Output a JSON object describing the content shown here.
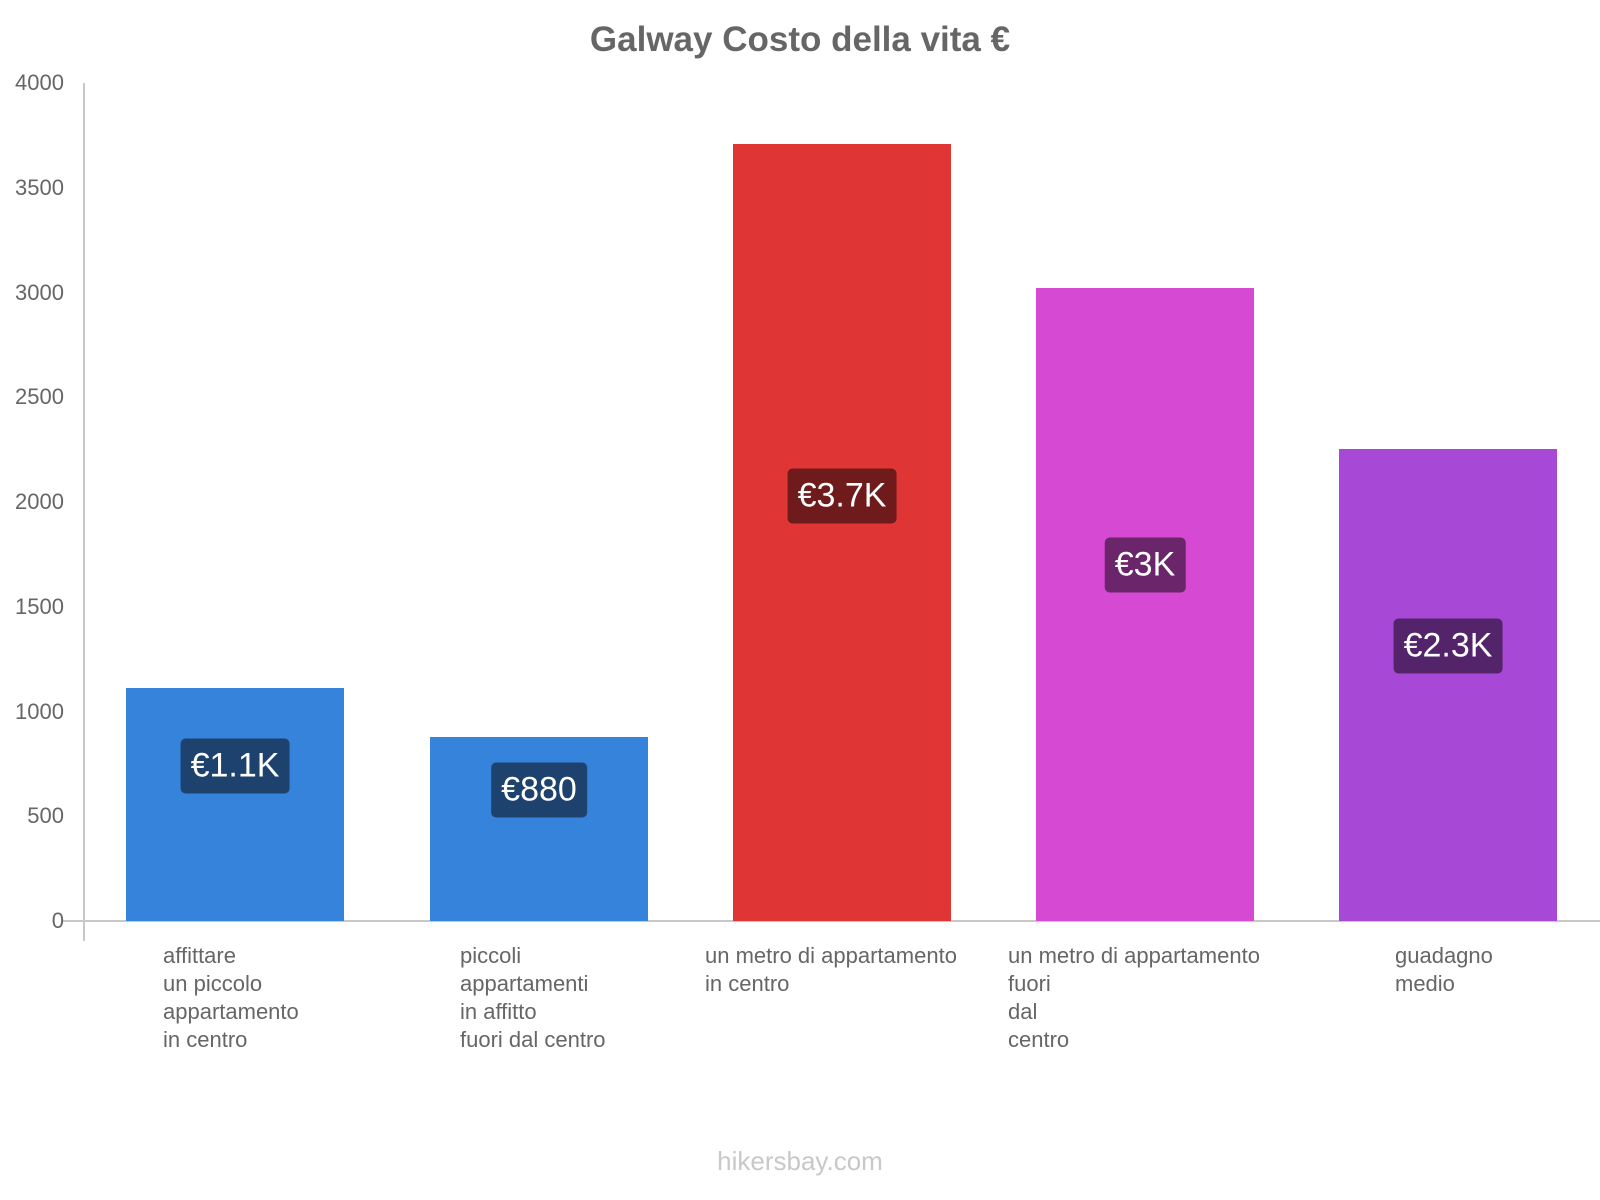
{
  "chart_data": {
    "type": "bar",
    "title": "Galway Costo della vita €",
    "xlabel": "",
    "ylabel": "",
    "ylim": [
      0,
      4000
    ],
    "yticks": [
      0,
      500,
      1000,
      1500,
      2000,
      2500,
      3000,
      3500,
      4000
    ],
    "grid": false,
    "legend": null,
    "categories": [
      "affittare un piccolo appartamento in centro",
      "piccoli appartamenti in affitto fuori dal centro",
      "un metro di appartamento in centro",
      "un metro di appartamento fuori dal centro",
      "guadagno medio"
    ],
    "category_label_lines": [
      [
        "affittare",
        "un piccolo",
        "appartamento",
        "in centro"
      ],
      [
        "piccoli",
        "appartamenti",
        "in affitto",
        "fuori dal centro"
      ],
      [
        "un metro di appartamento",
        "in centro"
      ],
      [
        "un metro di appartamento",
        "fuori",
        "dal",
        "centro"
      ],
      [
        "guadagno",
        "medio"
      ]
    ],
    "values": [
      1110,
      880,
      3707,
      3022,
      2254
    ],
    "value_labels": [
      "€1.1K",
      "€880",
      "€3.7K",
      "€3K",
      "€2.3K"
    ],
    "colors": [
      "#3683dc",
      "#3683dc",
      "#e03535",
      "#d64ad3",
      "#a848d6"
    ],
    "badge_colors": [
      "#1d426e",
      "#1d426e",
      "#701b1b",
      "#6b256a",
      "#54246b"
    ]
  },
  "footer": {
    "watermark": "hikersbay.com"
  }
}
